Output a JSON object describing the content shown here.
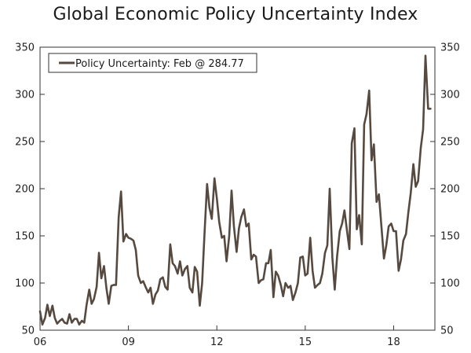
{
  "chart_data": {
    "type": "line",
    "title": "Global Economic Policy Uncertainty Index",
    "xlabel": "",
    "ylabel": "",
    "xlim": [
      2006.0,
      2019.4
    ],
    "ylim": [
      50,
      350
    ],
    "y_ticks": [
      50,
      100,
      150,
      200,
      250,
      300,
      350
    ],
    "x_ticks": [
      {
        "value": 2006,
        "label": "06"
      },
      {
        "value": 2009,
        "label": "09"
      },
      {
        "value": 2012,
        "label": "12"
      },
      {
        "value": 2015,
        "label": "15"
      },
      {
        "value": 2018,
        "label": "18"
      }
    ],
    "grid": false,
    "legend_position": "top-left",
    "series_color": "#564a40",
    "series": [
      {
        "name": "Policy Uncertainty: Feb @ 284.77",
        "points": [
          [
            2006.0,
            70
          ],
          [
            2006.08,
            56
          ],
          [
            2006.17,
            63
          ],
          [
            2006.25,
            77
          ],
          [
            2006.33,
            65
          ],
          [
            2006.42,
            76
          ],
          [
            2006.5,
            63
          ],
          [
            2006.58,
            57
          ],
          [
            2006.67,
            60
          ],
          [
            2006.75,
            62
          ],
          [
            2006.83,
            58
          ],
          [
            2006.92,
            57
          ],
          [
            2007.0,
            67
          ],
          [
            2007.08,
            58
          ],
          [
            2007.17,
            62
          ],
          [
            2007.25,
            62
          ],
          [
            2007.33,
            56
          ],
          [
            2007.42,
            60
          ],
          [
            2007.5,
            58
          ],
          [
            2007.58,
            77
          ],
          [
            2007.67,
            93
          ],
          [
            2007.75,
            78
          ],
          [
            2007.83,
            83
          ],
          [
            2007.92,
            96
          ],
          [
            2008.0,
            132
          ],
          [
            2008.08,
            105
          ],
          [
            2008.17,
            118
          ],
          [
            2008.25,
            95
          ],
          [
            2008.33,
            78
          ],
          [
            2008.42,
            97
          ],
          [
            2008.5,
            98
          ],
          [
            2008.58,
            98
          ],
          [
            2008.67,
            170
          ],
          [
            2008.75,
            197
          ],
          [
            2008.83,
            144
          ],
          [
            2008.92,
            152
          ],
          [
            2009.0,
            148
          ],
          [
            2009.08,
            147
          ],
          [
            2009.17,
            145
          ],
          [
            2009.25,
            135
          ],
          [
            2009.33,
            108
          ],
          [
            2009.42,
            100
          ],
          [
            2009.5,
            102
          ],
          [
            2009.58,
            96
          ],
          [
            2009.67,
            90
          ],
          [
            2009.75,
            95
          ],
          [
            2009.83,
            78
          ],
          [
            2009.92,
            88
          ],
          [
            2010.0,
            92
          ],
          [
            2010.08,
            104
          ],
          [
            2010.17,
            106
          ],
          [
            2010.25,
            96
          ],
          [
            2010.33,
            93
          ],
          [
            2010.42,
            141
          ],
          [
            2010.5,
            121
          ],
          [
            2010.58,
            118
          ],
          [
            2010.67,
            110
          ],
          [
            2010.75,
            123
          ],
          [
            2010.83,
            108
          ],
          [
            2010.92,
            115
          ],
          [
            2011.0,
            118
          ],
          [
            2011.08,
            95
          ],
          [
            2011.17,
            90
          ],
          [
            2011.25,
            117
          ],
          [
            2011.33,
            112
          ],
          [
            2011.42,
            76
          ],
          [
            2011.5,
            100
          ],
          [
            2011.58,
            152
          ],
          [
            2011.67,
            205
          ],
          [
            2011.75,
            180
          ],
          [
            2011.83,
            168
          ],
          [
            2011.92,
            211
          ],
          [
            2012.0,
            190
          ],
          [
            2012.08,
            165
          ],
          [
            2012.17,
            148
          ],
          [
            2012.25,
            150
          ],
          [
            2012.33,
            123
          ],
          [
            2012.42,
            150
          ],
          [
            2012.5,
            198
          ],
          [
            2012.58,
            160
          ],
          [
            2012.67,
            133
          ],
          [
            2012.75,
            158
          ],
          [
            2012.83,
            170
          ],
          [
            2012.92,
            178
          ],
          [
            2013.0,
            160
          ],
          [
            2013.08,
            163
          ],
          [
            2013.17,
            125
          ],
          [
            2013.25,
            130
          ],
          [
            2013.33,
            128
          ],
          [
            2013.42,
            100
          ],
          [
            2013.5,
            103
          ],
          [
            2013.58,
            104
          ],
          [
            2013.67,
            121
          ],
          [
            2013.75,
            121
          ],
          [
            2013.83,
            135
          ],
          [
            2013.92,
            85
          ],
          [
            2014.0,
            112
          ],
          [
            2014.08,
            108
          ],
          [
            2014.17,
            98
          ],
          [
            2014.25,
            86
          ],
          [
            2014.33,
            100
          ],
          [
            2014.42,
            95
          ],
          [
            2014.5,
            97
          ],
          [
            2014.58,
            82
          ],
          [
            2014.67,
            90
          ],
          [
            2014.75,
            100
          ],
          [
            2014.83,
            127
          ],
          [
            2014.92,
            128
          ],
          [
            2015.0,
            108
          ],
          [
            2015.08,
            110
          ],
          [
            2015.17,
            148
          ],
          [
            2015.25,
            113
          ],
          [
            2015.33,
            95
          ],
          [
            2015.42,
            98
          ],
          [
            2015.5,
            100
          ],
          [
            2015.58,
            110
          ],
          [
            2015.67,
            132
          ],
          [
            2015.75,
            140
          ],
          [
            2015.83,
            200
          ],
          [
            2015.92,
            127
          ],
          [
            2016.0,
            93
          ],
          [
            2016.08,
            128
          ],
          [
            2016.17,
            155
          ],
          [
            2016.25,
            163
          ],
          [
            2016.33,
            177
          ],
          [
            2016.42,
            155
          ],
          [
            2016.5,
            136
          ],
          [
            2016.58,
            248
          ],
          [
            2016.67,
            264
          ],
          [
            2016.75,
            157
          ],
          [
            2016.83,
            172
          ],
          [
            2016.92,
            141
          ],
          [
            2017.0,
            268
          ],
          [
            2017.08,
            279
          ],
          [
            2017.17,
            304
          ],
          [
            2017.25,
            230
          ],
          [
            2017.33,
            247
          ],
          [
            2017.42,
            186
          ],
          [
            2017.5,
            194
          ],
          [
            2017.58,
            162
          ],
          [
            2017.67,
            126
          ],
          [
            2017.75,
            140
          ],
          [
            2017.83,
            160
          ],
          [
            2017.92,
            163
          ],
          [
            2018.0,
            155
          ],
          [
            2018.08,
            155
          ],
          [
            2018.17,
            113
          ],
          [
            2018.25,
            125
          ],
          [
            2018.33,
            145
          ],
          [
            2018.42,
            152
          ],
          [
            2018.5,
            175
          ],
          [
            2018.58,
            195
          ],
          [
            2018.67,
            226
          ],
          [
            2018.75,
            202
          ],
          [
            2018.83,
            208
          ],
          [
            2018.92,
            243
          ],
          [
            2019.0,
            263
          ],
          [
            2019.08,
            341
          ],
          [
            2019.17,
            284.77
          ],
          [
            2019.25,
            284.77
          ]
        ]
      }
    ]
  }
}
